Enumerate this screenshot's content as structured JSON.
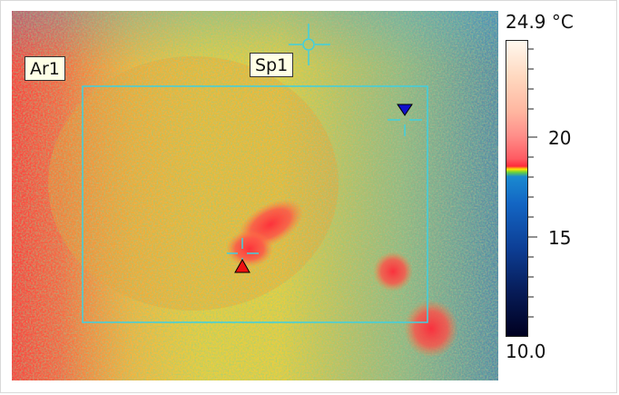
{
  "scale": {
    "max_label": "24.9 °C",
    "min_label": "10.0",
    "tick_20": "20",
    "tick_15": "15"
  },
  "labels": {
    "area": "Ar1",
    "spot": "Sp1"
  },
  "markers": {
    "hot": "hot-spot-marker",
    "cold": "cold-spot-marker"
  },
  "colors": {
    "roi": "#3fd0e0",
    "hot_marker": "#ee1111",
    "cold_marker": "#1010cc"
  }
}
